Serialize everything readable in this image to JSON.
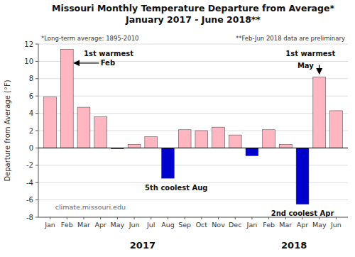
{
  "chart_data": {
    "type": "bar",
    "title": "Missouri Monthly Temperature Departure from Average*",
    "subtitle": "January 2017 - June 2018**",
    "y_label": "Departure from Average (°F)",
    "categories": [
      "Jan",
      "Feb",
      "Mar",
      "Apr",
      "May",
      "Jun",
      "Jul",
      "Aug",
      "Sep",
      "Oct",
      "Nov",
      "Dec",
      "Jan",
      "Feb",
      "Mar",
      "Apr",
      "May",
      "Jun"
    ],
    "values": [
      5.9,
      11.4,
      4.7,
      3.6,
      -0.1,
      0.4,
      1.3,
      -3.5,
      2.1,
      2.0,
      2.4,
      1.5,
      -0.9,
      2.1,
      0.4,
      -6.5,
      8.2,
      4.3
    ],
    "colors": [
      "#FFB6C1",
      "#FFB6C1",
      "#FFB6C1",
      "#FFB6C1",
      "#0000CC",
      "#FFB6C1",
      "#FFB6C1",
      "#0000CC",
      "#FFB6C1",
      "#FFB6C1",
      "#FFB6C1",
      "#FFB6C1",
      "#0000CC",
      "#FFB6C1",
      "#FFB6C1",
      "#0000CC",
      "#FFB6C1",
      "#FFB6C1"
    ],
    "ylim": [
      -8.0,
      12.0
    ],
    "yticks": [
      -8,
      -6,
      -4,
      -2,
      0,
      2,
      4,
      6,
      8,
      10,
      12
    ],
    "grid": true,
    "annotations": [
      "*Long-term  average: 1895-2010",
      "**Feb-Jun  2018 data are preliminary",
      "1st warmest",
      "Feb",
      "1st warmest",
      "May",
      "5th coolest Aug",
      "2nd coolest Apr",
      "climate.missouri.edu",
      "2017",
      "2018"
    ]
  }
}
